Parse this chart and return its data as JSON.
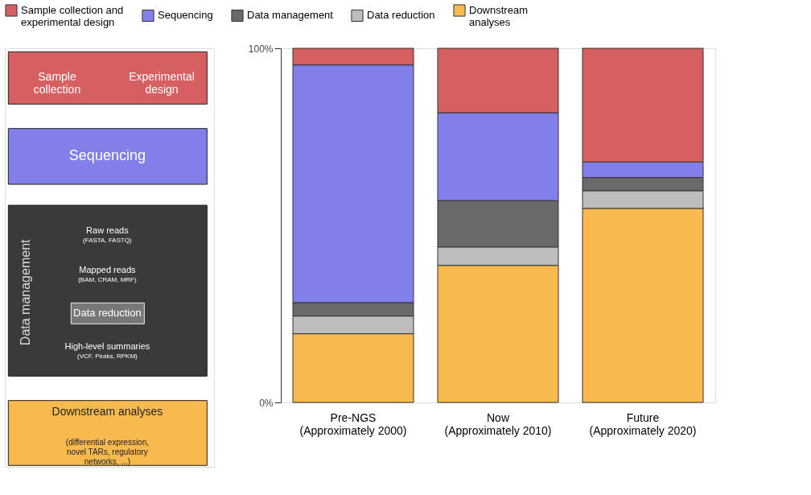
{
  "chart_data": [
    {
      "type": "other",
      "annotations": [
        "Sample\ncollection",
        "Experimental\ndesign",
        "Sequencing",
        "Data management",
        "Raw reads",
        "(FASTA, FASTQ)",
        "Mapped reads",
        "(BAM, CRAM, MRF)",
        "Data reduction",
        "High-level summaries",
        "(VCF, Peaks, RPKM)",
        "Downstream analyses",
        "(differential expression,\nnovel TARs, regulatory\nnetworks, ...)"
      ]
    },
    {
      "type": "bar",
      "stacked": true,
      "categories": [
        "Pre-NGS\n(Approximately 2000)",
        "Now\n(Approximately 2010)",
        "Future\n(Approximately 2020)"
      ],
      "series": [
        {
          "name": "Downstream\nanalyses",
          "color": "#f8b94f",
          "values": [
            19.4,
            38.7,
            54.8
          ]
        },
        {
          "name": "Data reduction",
          "color": "#bdbdbd",
          "values": [
            5.0,
            5.2,
            5.0
          ]
        },
        {
          "name": "Data management",
          "color": "#696969",
          "values": [
            3.8,
            13.1,
            3.7
          ]
        },
        {
          "name": "Sequencing",
          "color": "#8080e8",
          "values": [
            67.1,
            24.8,
            4.4
          ]
        },
        {
          "name": "Sample collection and\nexperimental design",
          "color": "#d55f61",
          "values": [
            4.7,
            18.2,
            32.1
          ]
        }
      ],
      "ylim": [
        0,
        100
      ],
      "yticks": [
        {
          "value": 0,
          "label": "0%"
        },
        {
          "value": 100,
          "label": "100%"
        }
      ],
      "legend": "top"
    }
  ]
}
